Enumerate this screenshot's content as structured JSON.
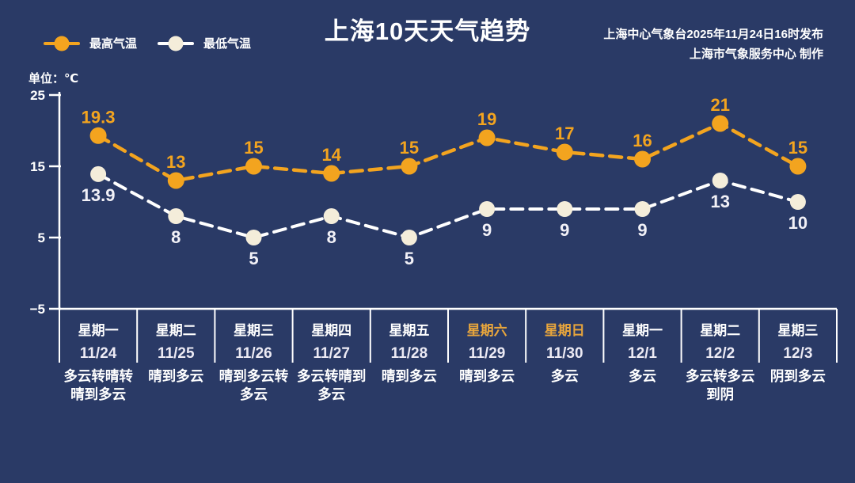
{
  "header": {
    "title": "上海10天天气趋势",
    "source_line1": "上海中心气象台2025年11月24日16时发布",
    "source_line2": "上海市气象服务中心 制作",
    "unit_label": "单位：℃"
  },
  "legend": {
    "high_label": "最高气温",
    "low_label": "最低气温"
  },
  "colors": {
    "background": "#2a3a66",
    "high": "#f3a41f",
    "low_line": "#ffffff",
    "low_marker": "#f4edda",
    "axis": "#ffffff",
    "text": "#ffffff",
    "date_text": "#eceaf4",
    "low_value_text": "#f2f1f7",
    "weekend_text": "#e9a63c"
  },
  "chart_data": {
    "type": "line",
    "title": "上海10天天气趋势",
    "ylabel": "单位：℃",
    "ylim": [
      -5,
      25
    ],
    "yticks": [
      25,
      15,
      5,
      -5
    ],
    "grid": false,
    "legend_position": "top-left",
    "categories": [
      {
        "day": "星期一",
        "date": "11/24",
        "weather": "多云转晴转晴到多云",
        "weekend": false
      },
      {
        "day": "星期二",
        "date": "11/25",
        "weather": "晴到多云",
        "weekend": false
      },
      {
        "day": "星期三",
        "date": "11/26",
        "weather": "晴到多云转多云",
        "weekend": false
      },
      {
        "day": "星期四",
        "date": "11/27",
        "weather": "多云转晴到多云",
        "weekend": false
      },
      {
        "day": "星期五",
        "date": "11/28",
        "weather": "晴到多云",
        "weekend": false
      },
      {
        "day": "星期六",
        "date": "11/29",
        "weather": "晴到多云",
        "weekend": true
      },
      {
        "day": "星期日",
        "date": "11/30",
        "weather": "多云",
        "weekend": true
      },
      {
        "day": "星期一",
        "date": "12/1",
        "weather": "多云",
        "weekend": false
      },
      {
        "day": "星期二",
        "date": "12/2",
        "weather": "多云转多云到阴",
        "weekend": false
      },
      {
        "day": "星期三",
        "date": "12/3",
        "weather": "阴到多云",
        "weekend": false
      }
    ],
    "series": [
      {
        "name": "最高气温",
        "color": "#f3a41f",
        "values": [
          19.3,
          13,
          15,
          14,
          15,
          19,
          17,
          16,
          21,
          15
        ]
      },
      {
        "name": "最低气温",
        "color": "#ffffff",
        "values": [
          13.9,
          8,
          5,
          8,
          5,
          9,
          9,
          9,
          13,
          10
        ]
      }
    ]
  }
}
